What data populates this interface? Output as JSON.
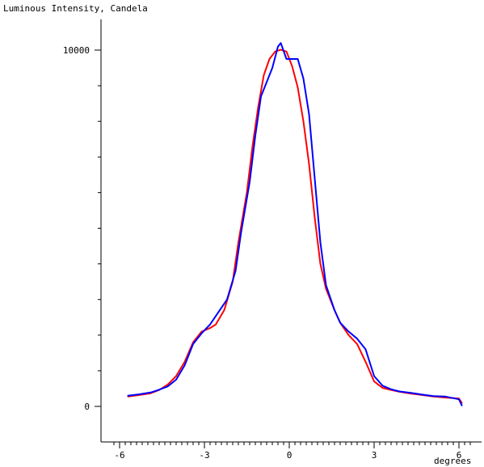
{
  "chart_data": {
    "type": "line",
    "title": "Luminous Intensity, Candela",
    "xlabel": "degrees",
    "ylabel": "Luminous Intensity, Candela",
    "xlim": [
      -6.3,
      6.6
    ],
    "ylim": [
      -900,
      11000
    ],
    "x_tick_labels": [
      "-6",
      "-3",
      "0",
      "3",
      "6"
    ],
    "x_tick_values": [
      -6,
      -3,
      0,
      3,
      6
    ],
    "y_tick_labels": [
      "0",
      "10000"
    ],
    "y_tick_values": [
      0,
      10000
    ],
    "grid": false,
    "series": [
      {
        "color": "#ff0000",
        "x": [
          -5.7,
          -5.3,
          -4.9,
          -4.6,
          -4.3,
          -4.0,
          -3.7,
          -3.4,
          -3.1,
          -2.8,
          -2.6,
          -2.3,
          -2.0,
          -1.8,
          -1.5,
          -1.3,
          -1.1,
          -0.9,
          -0.7,
          -0.5,
          -0.3,
          -0.1,
          0.1,
          0.3,
          0.5,
          0.7,
          0.9,
          1.1,
          1.3,
          1.6,
          1.8,
          2.1,
          2.4,
          2.7,
          3.0,
          3.3,
          3.6,
          3.9,
          4.3,
          4.7,
          5.1,
          5.5,
          6.0,
          6.1
        ],
        "y": [
          280,
          320,
          370,
          460,
          610,
          850,
          1250,
          1800,
          2100,
          2200,
          2300,
          2700,
          3500,
          4600,
          6000,
          7300,
          8400,
          9300,
          9750,
          9960,
          10010,
          9960,
          9550,
          8950,
          8000,
          6800,
          5300,
          4000,
          3300,
          2700,
          2350,
          2000,
          1750,
          1250,
          700,
          520,
          460,
          410,
          360,
          320,
          280,
          250,
          220,
          100
        ]
      },
      {
        "color": "#0000ff",
        "x": [
          -5.7,
          -5.3,
          -4.9,
          -4.6,
          -4.3,
          -4.0,
          -3.7,
          -3.4,
          -3.1,
          -2.8,
          -2.5,
          -2.2,
          -1.9,
          -1.7,
          -1.4,
          -1.2,
          -1.0,
          -0.8,
          -0.6,
          -0.4,
          -0.3,
          -0.1,
          0.1,
          0.3,
          0.5,
          0.7,
          0.9,
          1.1,
          1.3,
          1.6,
          1.8,
          2.1,
          2.4,
          2.7,
          3.0,
          3.3,
          3.6,
          3.9,
          4.3,
          4.7,
          5.1,
          5.5,
          6.0,
          6.1
        ],
        "y": [
          300,
          340,
          390,
          470,
          560,
          750,
          1150,
          1750,
          2050,
          2300,
          2650,
          3000,
          3800,
          4900,
          6300,
          7600,
          8700,
          9100,
          9500,
          10100,
          10200,
          9750,
          9750,
          9750,
          9200,
          8200,
          6400,
          4600,
          3400,
          2700,
          2350,
          2100,
          1900,
          1600,
          850,
          580,
          480,
          420,
          380,
          330,
          290,
          280,
          200,
          30
        ]
      }
    ]
  }
}
